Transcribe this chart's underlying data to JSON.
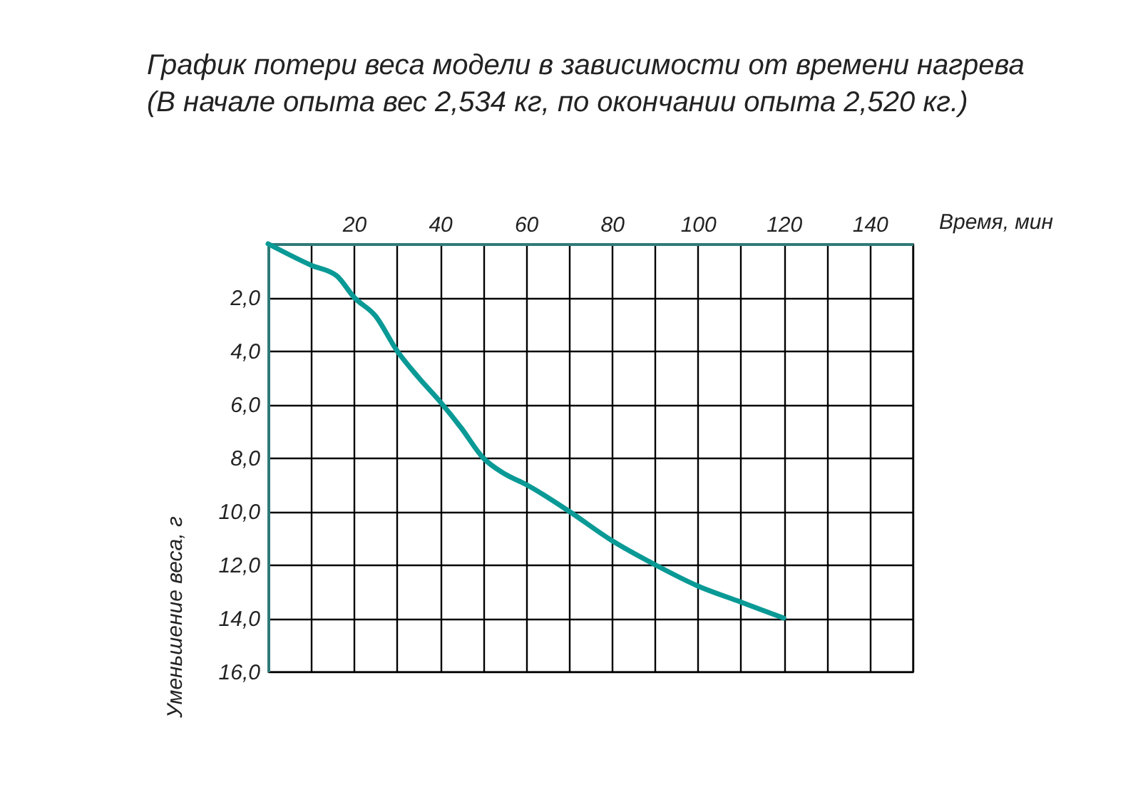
{
  "chart_data": {
    "type": "line",
    "title": "График потери веса модели в зависимости от времени нагрева",
    "subtitle": "(В начале опыта вес 2,534 кг, по окончании опыта 2,520 кг.)",
    "xlabel": "Время, мин",
    "ylabel": "Уменьшение веса, г",
    "x": [
      0,
      10,
      16,
      20,
      25,
      30,
      35,
      40,
      45,
      50,
      55,
      60,
      70,
      80,
      90,
      100,
      110,
      120
    ],
    "series": [
      {
        "color": "#0a9a96",
        "values": [
          0,
          0.8,
          1.2,
          2.0,
          2.7,
          4.0,
          5.0,
          5.9,
          6.9,
          8.0,
          8.6,
          9.0,
          10.0,
          11.1,
          12.0,
          12.8,
          13.4,
          14.0
        ]
      }
    ],
    "xlim": [
      0,
      150
    ],
    "xticks": [
      {
        "value": 0,
        "label": null
      },
      {
        "value": 10,
        "label": null
      },
      20,
      {
        "value": 30,
        "label": null
      },
      40,
      {
        "value": 50,
        "label": null
      },
      60,
      {
        "value": 70,
        "label": null
      },
      80,
      {
        "value": 90,
        "label": null
      },
      100,
      {
        "value": 110,
        "label": null
      },
      120,
      {
        "value": 130,
        "label": null
      },
      140,
      {
        "value": 150,
        "label": null
      }
    ],
    "ylim": [
      16,
      0
    ],
    "yticks": [
      {
        "value": 0,
        "label": null
      },
      {
        "value": 2,
        "label": "2,0"
      },
      {
        "value": 4,
        "label": "4,0"
      },
      {
        "value": 6,
        "label": "6,0"
      },
      {
        "value": 8,
        "label": "8,0"
      },
      {
        "value": 10,
        "label": "10,0"
      },
      {
        "value": 12,
        "label": "12,0"
      },
      {
        "value": 14,
        "label": "14,0"
      },
      {
        "value": 16,
        "label": "16,0"
      }
    ],
    "grid": true,
    "marker": "none",
    "line_style": "solid"
  }
}
